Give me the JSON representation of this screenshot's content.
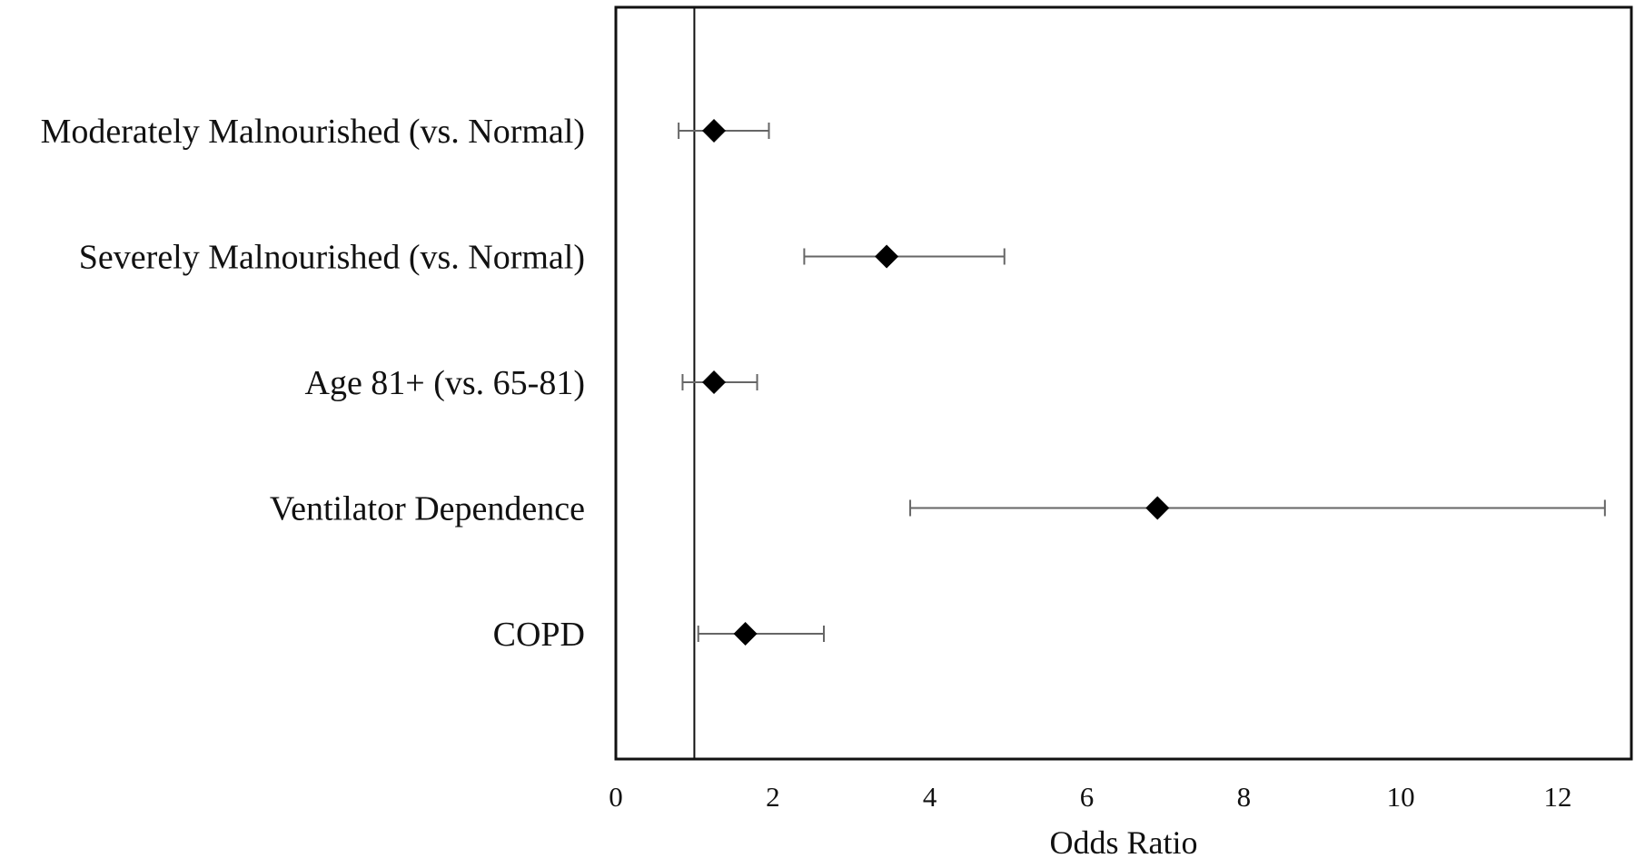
{
  "chart_data": {
    "type": "forest",
    "title": "",
    "xlabel": "Odds Ratio",
    "ylabel": "",
    "xlim": [
      0,
      13
    ],
    "xticks": [
      0,
      2,
      4,
      6,
      8,
      10,
      12
    ],
    "xtick_labels": [
      "0",
      "2",
      "4",
      "6",
      "8",
      "10",
      "12"
    ],
    "reference_line": 1,
    "grid": false,
    "legend": "none",
    "marker": "diamond",
    "colors": {
      "marker": "#000000",
      "error_bar": "#666666",
      "frame": "#111111"
    },
    "categories": [
      "Moderately Malnourished (vs. Normal)",
      "Severely Malnourished (vs. Normal)",
      "Age 81+ (vs. 65-81)",
      "Ventilator Dependence",
      "COPD"
    ],
    "values": [
      1.25,
      3.45,
      1.25,
      6.9,
      1.65
    ],
    "ci_lower": [
      0.8,
      2.4,
      0.85,
      3.75,
      1.05
    ],
    "ci_upper": [
      1.95,
      4.95,
      1.8,
      12.6,
      2.65
    ]
  }
}
